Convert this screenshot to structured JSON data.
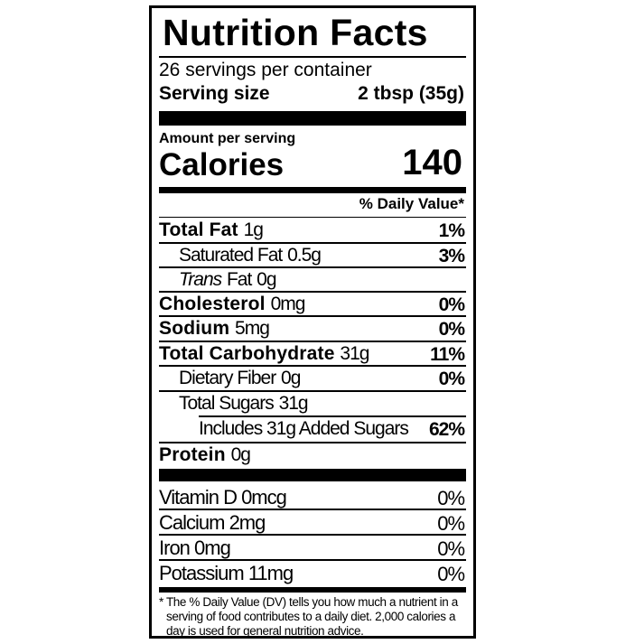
{
  "title": "Nutrition Facts",
  "servings_per_container": "26 servings per container",
  "serving_size_label": "Serving size",
  "serving_size_value": "2 tbsp (35g)",
  "amount_per_serving": "Amount per serving",
  "calories_label": "Calories",
  "calories_value": "140",
  "daily_value_header": "% Daily Value*",
  "nutrients": [
    {
      "name": "Total Fat",
      "amount": "1g",
      "dv": "1%"
    },
    {
      "name": "Saturated Fat",
      "amount": "0.5g",
      "dv": "3%"
    },
    {
      "name": "Trans",
      "suffix": "Fat",
      "amount": "0g",
      "dv": ""
    },
    {
      "name": "Cholesterol",
      "amount": "0mg",
      "dv": "0%"
    },
    {
      "name": "Sodium",
      "amount": "5mg",
      "dv": "0%"
    },
    {
      "name": "Total Carbohydrate",
      "amount": "31g",
      "dv": "11%"
    },
    {
      "name": "Dietary Fiber",
      "amount": "0g",
      "dv": "0%"
    },
    {
      "name": "Total Sugars",
      "amount": "31g",
      "dv": ""
    },
    {
      "name": "Includes 31g Added Sugars",
      "amount": "",
      "dv": "62%"
    },
    {
      "name": "Protein",
      "amount": "0g",
      "dv": ""
    }
  ],
  "vitamins": [
    {
      "label": "Vitamin D 0mcg",
      "dv": "0%"
    },
    {
      "label": "Calcium 2mg",
      "dv": "0%"
    },
    {
      "label": "Iron 0mg",
      "dv": "0%"
    },
    {
      "label": "Potassium 11mg",
      "dv": "0%"
    }
  ],
  "footnote": [
    "* The % Daily Value (DV) tells you how much a nutrient in a",
    "serving of food contributes to a daily diet. 2,000 calories a",
    "day is used for general nutrition advice."
  ]
}
